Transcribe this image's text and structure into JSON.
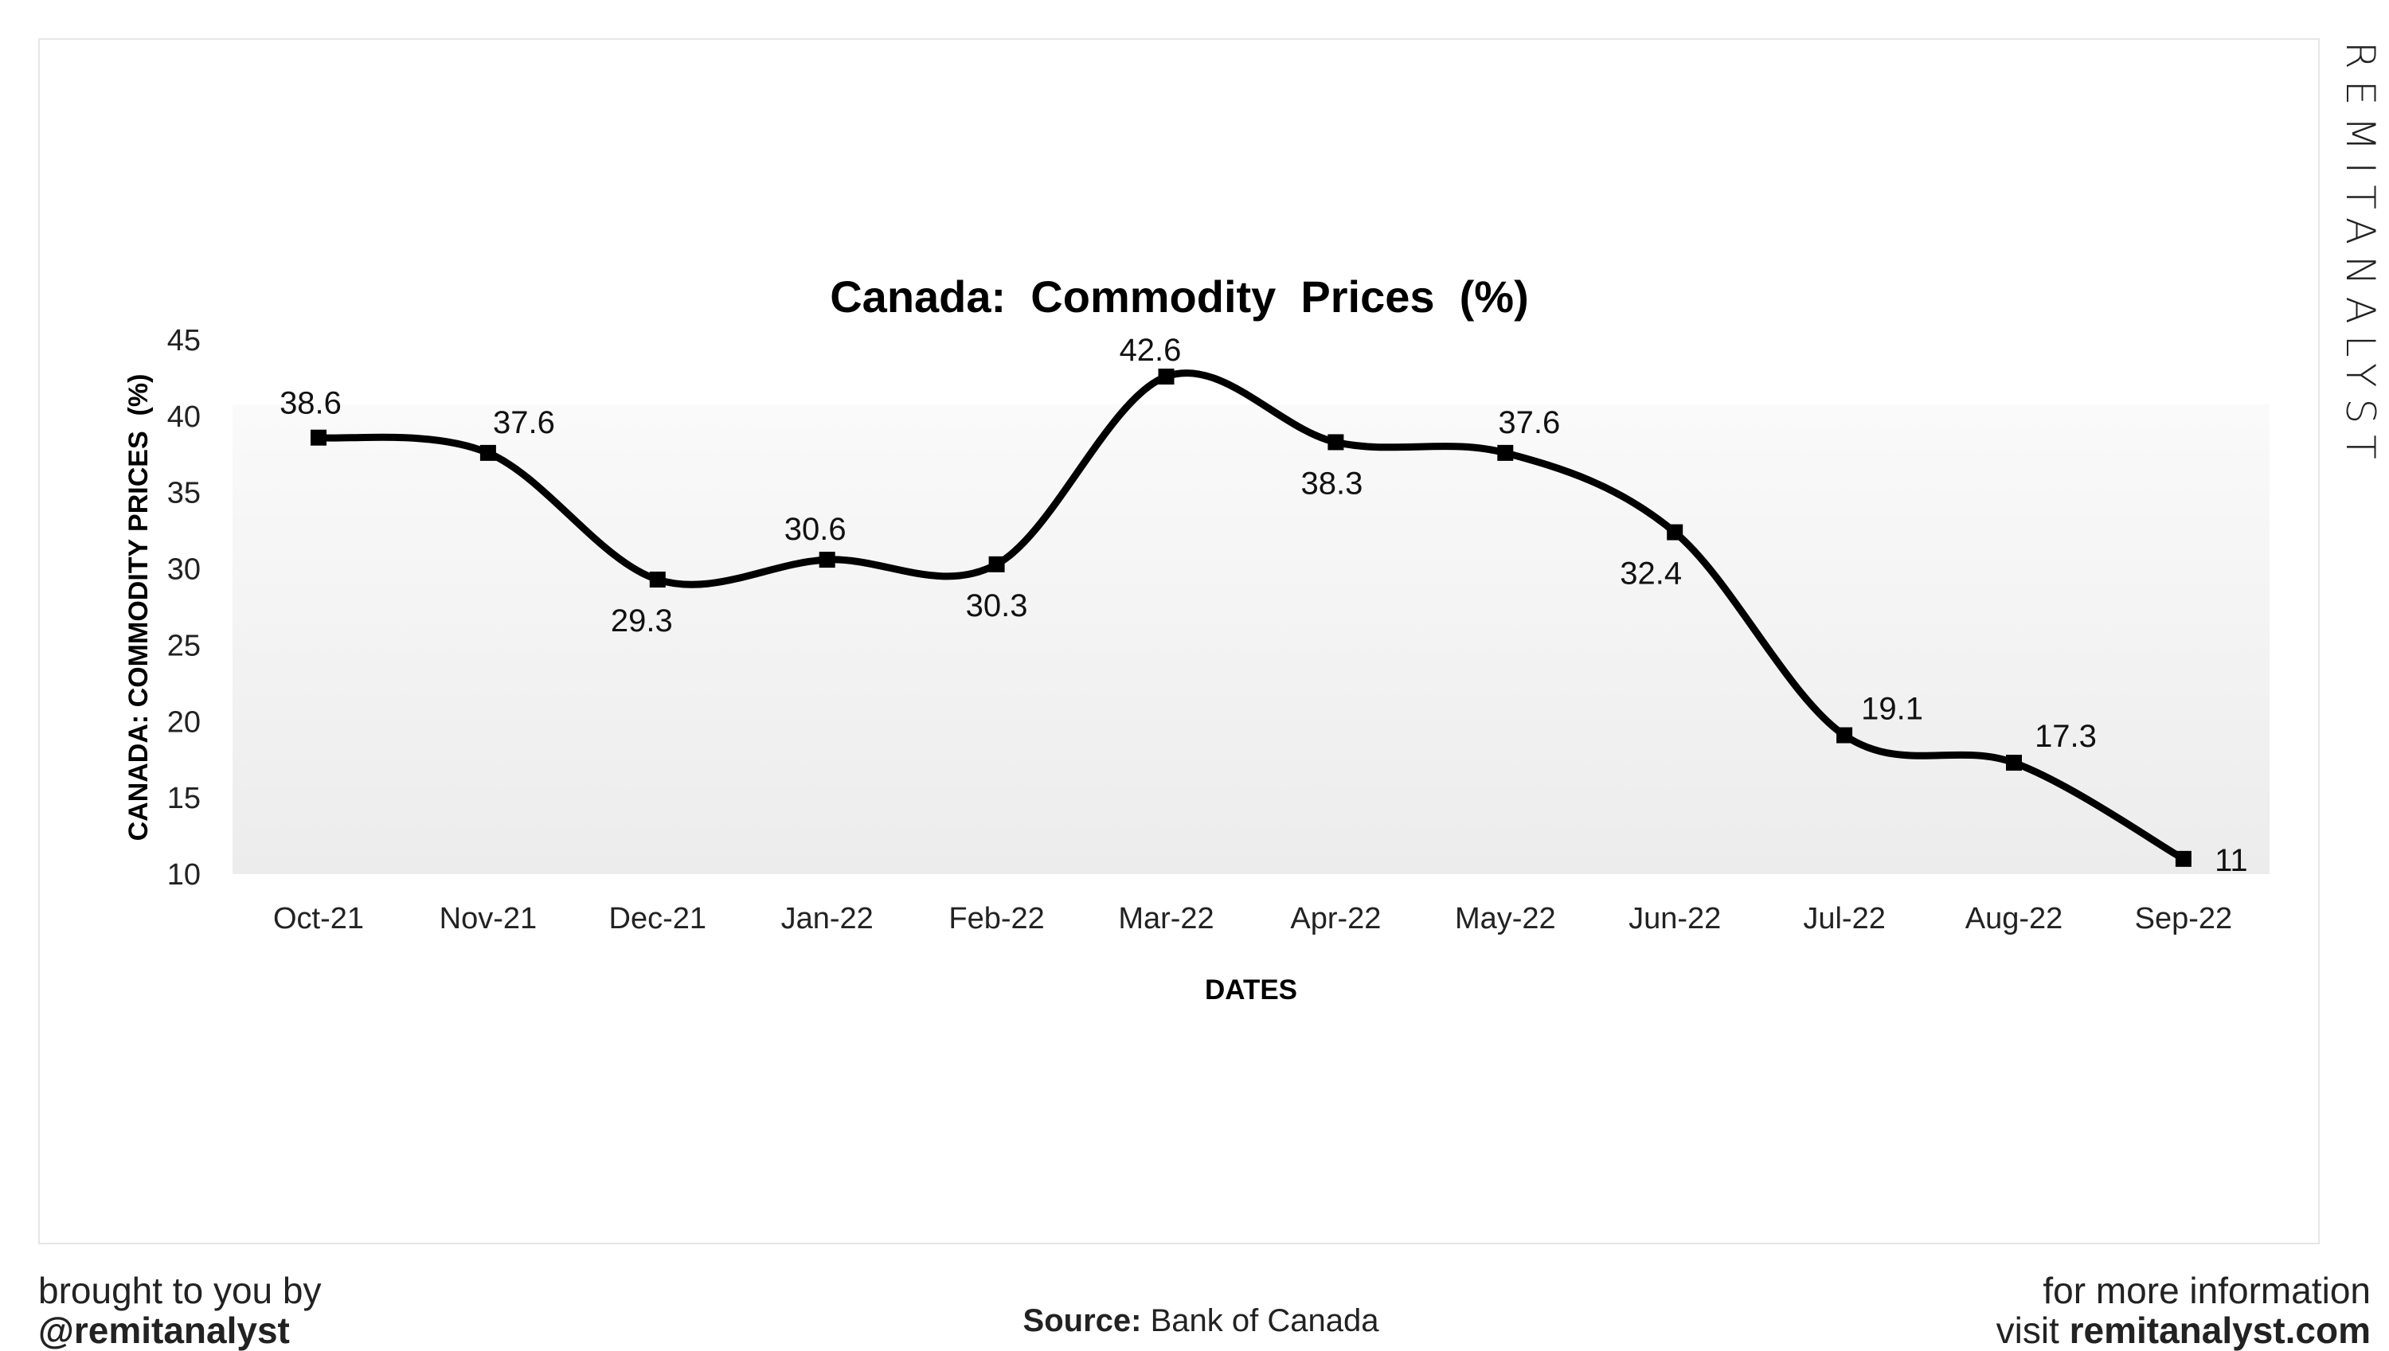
{
  "brand": "REMITANALYST",
  "footer": {
    "left_line1": "brought to you by",
    "left_line2": "@remitanalyst",
    "source_label": "Source:",
    "source_value": "Bank of Canada",
    "right_line1": "for more information",
    "right_prefix": "visit",
    "right_site": "remitanalyst.com"
  },
  "chart_data": {
    "type": "line",
    "title": "Canada:  Commodity  Prices  (%)",
    "xlabel": "DATES",
    "ylabel": "CANADA: COMMODITY PRICES  (%)",
    "categories": [
      "Oct-21",
      "Nov-21",
      "Dec-21",
      "Jan-22",
      "Feb-22",
      "Mar-22",
      "Apr-22",
      "May-22",
      "Jun-22",
      "Jul-22",
      "Aug-22",
      "Sep-22"
    ],
    "values": [
      38.6,
      37.6,
      29.3,
      30.6,
      30.3,
      42.6,
      38.3,
      37.6,
      32.4,
      19.1,
      17.3,
      11
    ],
    "data_labels": [
      "38.6",
      "37.6",
      "29.3",
      "30.6",
      "30.3",
      "42.6",
      "38.3",
      "37.6",
      "32.4",
      "19.1",
      "17.3",
      "11"
    ],
    "ylim": [
      10,
      45
    ],
    "yticks": [
      "10",
      "15",
      "20",
      "25",
      "30",
      "35",
      "40",
      "45"
    ],
    "grid": false,
    "line_color": "#000000",
    "smooth": true
  }
}
